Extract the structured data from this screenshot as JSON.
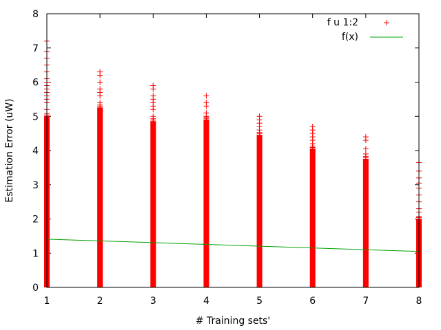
{
  "chart_data": {
    "type": "scatter",
    "title": "",
    "xlabel": "# Training sets'",
    "ylabel": "Estimation Error (uW)",
    "xlim": [
      1,
      8
    ],
    "ylim": [
      0,
      8
    ],
    "x_ticks": [
      1,
      2,
      3,
      4,
      5,
      6,
      7,
      8
    ],
    "y_ticks": [
      0,
      1,
      2,
      3,
      4,
      5,
      6,
      7,
      8
    ],
    "grid": false,
    "legend_position": "top-right",
    "series": [
      {
        "name": "f u 1:2",
        "style": "points",
        "marker": "plus",
        "color": "#ff0000",
        "columns": [
          {
            "x": 1,
            "dense_min": 0,
            "dense_max": 5.0,
            "outliers": [
              5.2,
              5.4,
              5.5,
              5.6,
              5.7,
              5.8,
              5.9,
              6.0,
              6.1,
              6.3,
              6.5,
              6.7,
              6.9,
              7.2
            ]
          },
          {
            "x": 2,
            "dense_min": 0,
            "dense_max": 5.25,
            "outliers": [
              5.4,
              5.6,
              5.7,
              5.8,
              6.0,
              6.2,
              6.3
            ]
          },
          {
            "x": 3,
            "dense_min": 0,
            "dense_max": 4.85,
            "outliers": [
              5.0,
              5.2,
              5.3,
              5.4,
              5.5,
              5.6,
              5.8,
              5.9
            ]
          },
          {
            "x": 4,
            "dense_min": 0,
            "dense_max": 4.9,
            "outliers": [
              5.0,
              5.1,
              5.3,
              5.4,
              5.6
            ]
          },
          {
            "x": 5,
            "dense_min": 0,
            "dense_max": 4.45,
            "outliers": [
              4.6,
              4.7,
              4.8,
              4.9,
              5.0
            ]
          },
          {
            "x": 6,
            "dense_min": 0,
            "dense_max": 4.05,
            "outliers": [
              4.2,
              4.3,
              4.4,
              4.5,
              4.6,
              4.7
            ]
          },
          {
            "x": 7,
            "dense_min": 0,
            "dense_max": 3.75,
            "outliers": [
              2.65,
              3.9,
              4.05,
              4.3,
              4.4
            ]
          },
          {
            "x": 8,
            "dense_min": 0,
            "dense_max": 2.0,
            "outliers": [
              0.1,
              0.3,
              0.55,
              0.8,
              1.3,
              1.55,
              1.7,
              2.2,
              2.3,
              2.5,
              2.7,
              2.9,
              3.05,
              3.2,
              3.4,
              3.65
            ]
          }
        ]
      },
      {
        "name": "f(x)",
        "style": "line",
        "color": "#00a000",
        "x": [
          1,
          8
        ],
        "y": [
          1.41,
          1.05
        ]
      }
    ]
  }
}
